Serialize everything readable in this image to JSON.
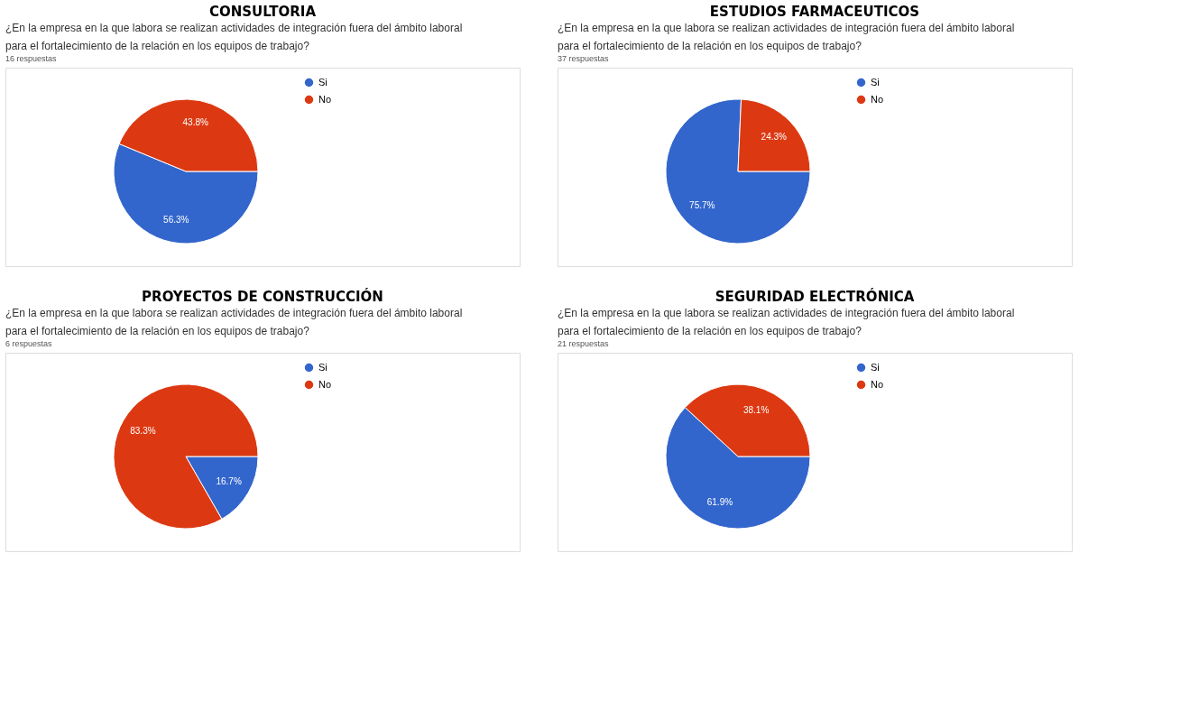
{
  "chart_data": [
    {
      "type": "pie",
      "title": "CONSULTORIA",
      "subtitle": "¿En la empresa en la que labora se realizan actividades de integración fuera del ámbito laboral para el fortalecimiento de la relación en los equipos de trabajo?",
      "annotations": [
        "16 respuestas"
      ],
      "categories": [
        "Si",
        "No"
      ],
      "values": [
        56.3,
        43.8
      ],
      "value_labels": [
        "56.3%",
        "43.8%"
      ],
      "colors": [
        "#3366cc",
        "#dc3912"
      ],
      "legend": "top right"
    },
    {
      "type": "pie",
      "title": "ESTUDIOS FARMACEUTICOS",
      "subtitle": "¿En la empresa en la que labora se realizan actividades de integración fuera del ámbito laboral para el fortalecimiento de la relación en los equipos de trabajo?",
      "annotations": [
        "37 respuestas"
      ],
      "categories": [
        "Si",
        "No"
      ],
      "values": [
        75.7,
        24.3
      ],
      "value_labels": [
        "75.7%",
        "24.3%"
      ],
      "colors": [
        "#3366cc",
        "#dc3912"
      ],
      "legend": "top right"
    },
    {
      "type": "pie",
      "title": "PROYECTOS DE CONSTRUCCIÓN",
      "subtitle": "¿En la empresa en la que labora se realizan actividades de integración fuera del ámbito laboral para el fortalecimiento de la relación en los equipos de trabajo?",
      "annotations": [
        "6 respuestas"
      ],
      "categories": [
        "Si",
        "No"
      ],
      "values": [
        16.7,
        83.3
      ],
      "value_labels": [
        "16.7%",
        "83.3%"
      ],
      "colors": [
        "#3366cc",
        "#dc3912"
      ],
      "legend": "top right"
    },
    {
      "type": "pie",
      "title": "SEGURIDAD ELECTRÓNICA",
      "subtitle": "¿En la empresa en la que labora se realizan actividades de integración fuera del ámbito laboral para el fortalecimiento de la relación en los equipos de trabajo?",
      "annotations": [
        "21 respuestas"
      ],
      "categories": [
        "Si",
        "No"
      ],
      "values": [
        61.9,
        38.1
      ],
      "value_labels": [
        "61.9%",
        "38.1%"
      ],
      "colors": [
        "#3366cc",
        "#dc3912"
      ],
      "legend": "top right"
    }
  ]
}
